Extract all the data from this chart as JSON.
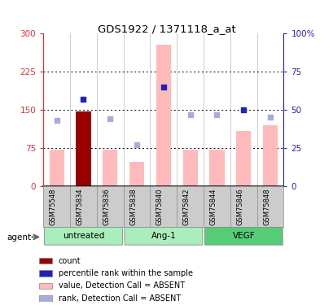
{
  "title": "GDS1922 / 1371118_a_at",
  "samples": [
    "GSM75548",
    "GSM75834",
    "GSM75836",
    "GSM75838",
    "GSM75840",
    "GSM75842",
    "GSM75844",
    "GSM75846",
    "GSM75848"
  ],
  "bar_values": [
    72,
    147,
    72,
    48,
    278,
    72,
    72,
    108,
    120
  ],
  "bar_colors": [
    "#ffbbbb",
    "#990000",
    "#ffbbbb",
    "#ffbbbb",
    "#ffbbbb",
    "#ffbbbb",
    "#ffbbbb",
    "#ffbbbb",
    "#ffbbbb"
  ],
  "dot_values_pct": [
    43,
    57,
    44,
    27,
    65,
    47,
    47,
    50,
    45
  ],
  "dot_colors": [
    "#aaaadd",
    "#2222bb",
    "#aaaadd",
    "#aaaadd",
    "#2222bb",
    "#aaaadd",
    "#aaaadd",
    "#2222bb",
    "#aaaadd"
  ],
  "groups": [
    {
      "label": "untreated",
      "start": 0,
      "end": 3,
      "color": "#aaeebb"
    },
    {
      "label": "Ang-1",
      "start": 3,
      "end": 6,
      "color": "#aaeebb"
    },
    {
      "label": "VEGF",
      "start": 6,
      "end": 9,
      "color": "#44cc66"
    }
  ],
  "ylim_left": [
    0,
    300
  ],
  "ylim_right": [
    0,
    100
  ],
  "yticks_left": [
    0,
    75,
    150,
    225,
    300
  ],
  "ytick_labels_left": [
    "0",
    "75",
    "150",
    "225",
    "300"
  ],
  "yticks_right": [
    0,
    25,
    50,
    75,
    100
  ],
  "ytick_labels_right": [
    "0",
    "25",
    "50",
    "75",
    "100%"
  ],
  "left_axis_color": "#dd3333",
  "right_axis_color": "#2222bb",
  "legend_items": [
    {
      "label": "count",
      "color": "#990000"
    },
    {
      "label": "percentile rank within the sample",
      "color": "#2222bb"
    },
    {
      "label": "value, Detection Call = ABSENT",
      "color": "#ffbbbb"
    },
    {
      "label": "rank, Detection Call = ABSENT",
      "color": "#aaaadd"
    }
  ],
  "agent_label": "agent",
  "bg_color": "#ffffff",
  "plot_bg": "#ffffff",
  "grid_color": "#000000",
  "sample_bg": "#cccccc",
  "group_border": "#888888"
}
